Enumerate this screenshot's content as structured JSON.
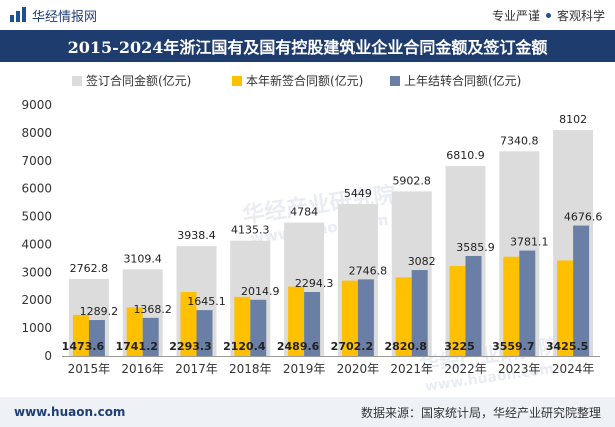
{
  "header": {
    "brand": "华经情报网",
    "tag1": "专业严谨",
    "tag2": "客观科学"
  },
  "chart_data": {
    "type": "bar",
    "title": "2015-2024年浙江国有及国有控股建筑业企业合同金额及签订金额",
    "categories": [
      "2015年",
      "2016年",
      "2017年",
      "2018年",
      "2019年",
      "2020年",
      "2021年",
      "2022年",
      "2023年",
      "2024年"
    ],
    "series": [
      {
        "name": "签订合同金额(亿元)",
        "color": "#dcdcdc",
        "values": [
          2762.8,
          3109.4,
          3938.4,
          4135.3,
          4784,
          5449,
          5902.8,
          6810.9,
          7340.8,
          8102
        ]
      },
      {
        "name": "本年新签合同额(亿元)",
        "color": "#ffc000",
        "values": [
          1473.6,
          1741.2,
          2293.3,
          2120.4,
          2489.6,
          2702.2,
          2820.8,
          3225,
          3559.7,
          3425.5
        ]
      },
      {
        "name": "上年结转合同额(亿元)",
        "color": "#6a7fa6",
        "values": [
          1289.2,
          1368.2,
          1645.1,
          2014.9,
          2294.3,
          2746.8,
          3082,
          3585.9,
          3781.1,
          4676.6
        ]
      }
    ],
    "yticks": [
      0,
      1000,
      2000,
      3000,
      4000,
      5000,
      6000,
      7000,
      8000,
      9000
    ],
    "ylim": [
      0,
      9000
    ],
    "legend_position": "top",
    "watermark": "华经产业研究院",
    "watermark_url": "www.huaon.com"
  },
  "footer": {
    "site": "www.huaon.com",
    "source": "数据来源：国家统计局，华经产业研究院整理"
  }
}
